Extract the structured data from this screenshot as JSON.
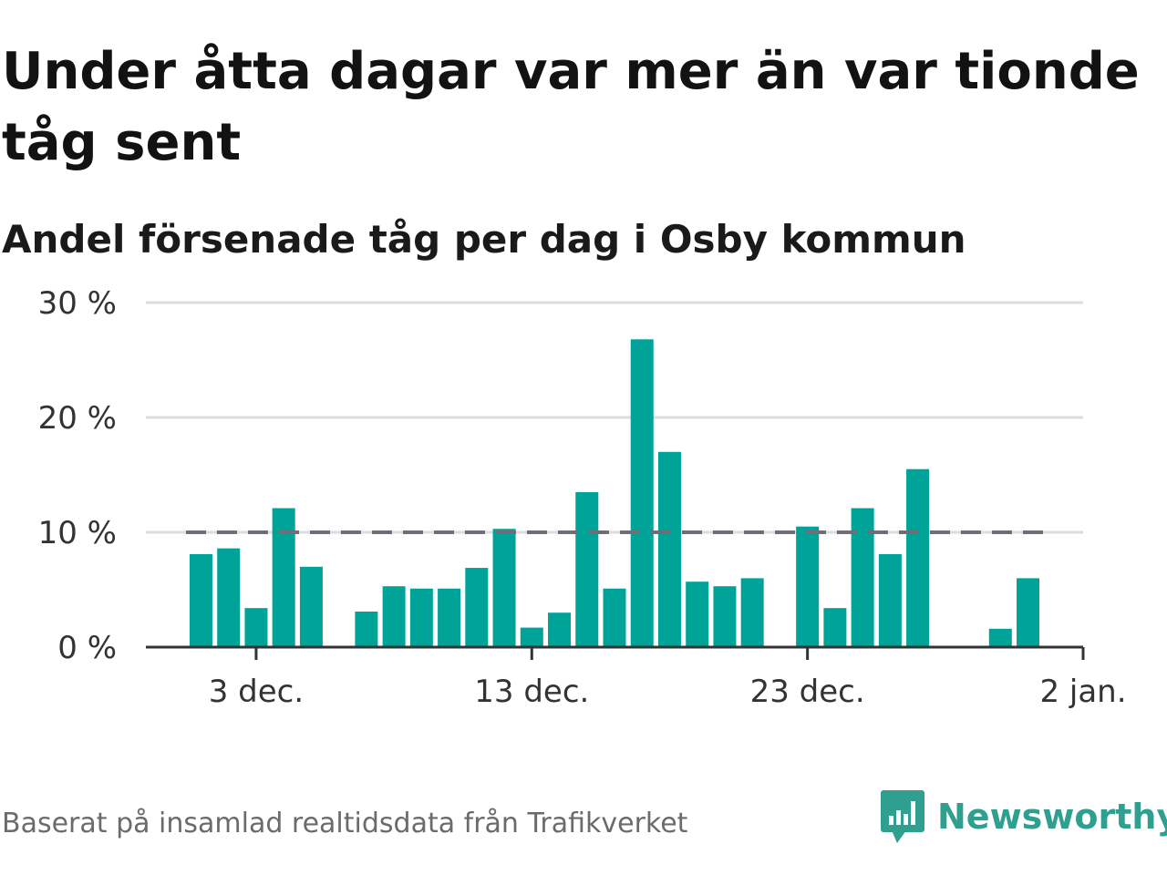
{
  "title": "Under åtta dagar var mer än var tionde tåg sent",
  "subtitle": "Andel försenade tåg per dag i Osby kommun",
  "source": "Baserat på insamlad realtidsdata från Trafikverket",
  "brand": {
    "name": "Newsworthy",
    "icon": "newsworthy-logo-icon",
    "color": "#2f9f90"
  },
  "colors": {
    "bar": "#00a398",
    "threshold": "#6e6e78",
    "grid": "#dddddd",
    "axis": "#333333"
  },
  "chart_data": {
    "type": "bar",
    "x": [
      "2022-12-01",
      "2022-12-02",
      "2022-12-03",
      "2022-12-04",
      "2022-12-05",
      "2022-12-06",
      "2022-12-07",
      "2022-12-08",
      "2022-12-09",
      "2022-12-10",
      "2022-12-11",
      "2022-12-12",
      "2022-12-13",
      "2022-12-14",
      "2022-12-15",
      "2022-12-16",
      "2022-12-17",
      "2022-12-18",
      "2022-12-19",
      "2022-12-20",
      "2022-12-21",
      "2022-12-22",
      "2022-12-23",
      "2022-12-24",
      "2022-12-25",
      "2022-12-26",
      "2022-12-27",
      "2022-12-28",
      "2022-12-29",
      "2022-12-30",
      "2022-12-31"
    ],
    "values": [
      8.1,
      8.6,
      3.4,
      12.1,
      7.0,
      null,
      3.1,
      5.3,
      5.1,
      5.1,
      6.9,
      10.3,
      1.7,
      3.0,
      13.5,
      5.1,
      26.8,
      17.0,
      5.7,
      5.3,
      6.0,
      null,
      10.5,
      3.4,
      12.1,
      8.1,
      15.5,
      null,
      null,
      1.6,
      6.0
    ],
    "ylim": [
      0,
      30
    ],
    "yticks": [
      {
        "value": 0,
        "label": "0 %"
      },
      {
        "value": 10,
        "label": "10 %"
      },
      {
        "value": 20,
        "label": "20 %"
      },
      {
        "value": 30,
        "label": "30 %"
      }
    ],
    "xticks": [
      {
        "date": "2022-12-03",
        "label": "3 dec."
      },
      {
        "date": "2022-12-13",
        "label": "13 dec."
      },
      {
        "date": "2022-12-23",
        "label": "23 dec."
      },
      {
        "date": "2023-01-02",
        "label": "2 jan."
      }
    ],
    "xlim": [
      "2022-11-29",
      "2023-01-02"
    ],
    "threshold": 10,
    "grid": true,
    "xlabel": "",
    "ylabel": ""
  }
}
